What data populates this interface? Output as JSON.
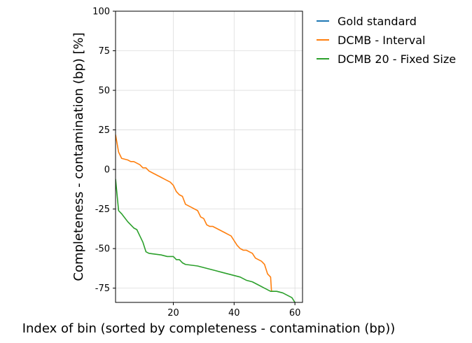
{
  "chart_data": {
    "type": "line",
    "xlabel": "Index of bin (sorted by completeness - contamination (bp))",
    "ylabel": "Completeness - contamination (bp) [%]",
    "xlim": [
      1,
      62.5
    ],
    "ylim": [
      -84,
      100
    ],
    "xticks": [
      20,
      40,
      60
    ],
    "yticks": [
      100,
      75,
      50,
      25,
      0,
      -25,
      -50,
      -75
    ],
    "grid": true,
    "legend_position": "outside-right",
    "series": [
      {
        "name": "Gold standard",
        "color": "#1f77b4",
        "x": [],
        "y": []
      },
      {
        "name": "DCMB - Interval",
        "color": "#ff7f0e",
        "x": [
          1,
          2,
          3,
          5,
          6,
          7,
          8,
          9,
          10,
          11,
          12,
          13,
          14,
          15,
          16,
          17,
          18,
          19,
          20,
          21,
          22,
          23,
          24,
          25,
          26,
          27,
          28,
          29,
          30,
          31,
          32,
          33,
          34,
          35,
          36,
          37,
          38,
          39,
          40,
          41,
          42,
          43,
          44,
          45,
          46,
          47,
          48,
          49,
          50,
          51,
          52,
          52.3,
          53
        ],
        "y": [
          22,
          11,
          7,
          6,
          5,
          5,
          4,
          3,
          1,
          1,
          -1,
          -2,
          -3,
          -4,
          -5,
          -6,
          -7,
          -8,
          -10,
          -14,
          -16,
          -17,
          -22,
          -23,
          -24,
          -25,
          -26,
          -30,
          -31,
          -35,
          -36,
          -36,
          -37,
          -38,
          -39,
          -40,
          -41,
          -42,
          -45,
          -48,
          -50,
          -51,
          -51,
          -52,
          -53,
          -56,
          -57,
          -58,
          -60,
          -66,
          -68,
          -77,
          -77
        ]
      },
      {
        "name": "DCMB 20 - Fixed Size",
        "color": "#2ca02c",
        "x": [
          1,
          2,
          3,
          5,
          6,
          7,
          8,
          9,
          10,
          11,
          12,
          14,
          16,
          18,
          20,
          21,
          22,
          23,
          24,
          26,
          28,
          30,
          32,
          34,
          36,
          38,
          40,
          42,
          44,
          46,
          48,
          50,
          52,
          54,
          56,
          58,
          59,
          60
        ],
        "y": [
          -6,
          -26,
          -28,
          -33,
          -35,
          -37,
          -38,
          -42,
          -46,
          -52,
          -53,
          -53.5,
          -54,
          -55,
          -55,
          -57,
          -57,
          -59,
          -60,
          -60.5,
          -61,
          -62,
          -63,
          -64,
          -65,
          -66,
          -67,
          -68,
          -70,
          -71,
          -73,
          -75,
          -77,
          -77,
          -78,
          -80,
          -81,
          -84
        ]
      }
    ]
  }
}
